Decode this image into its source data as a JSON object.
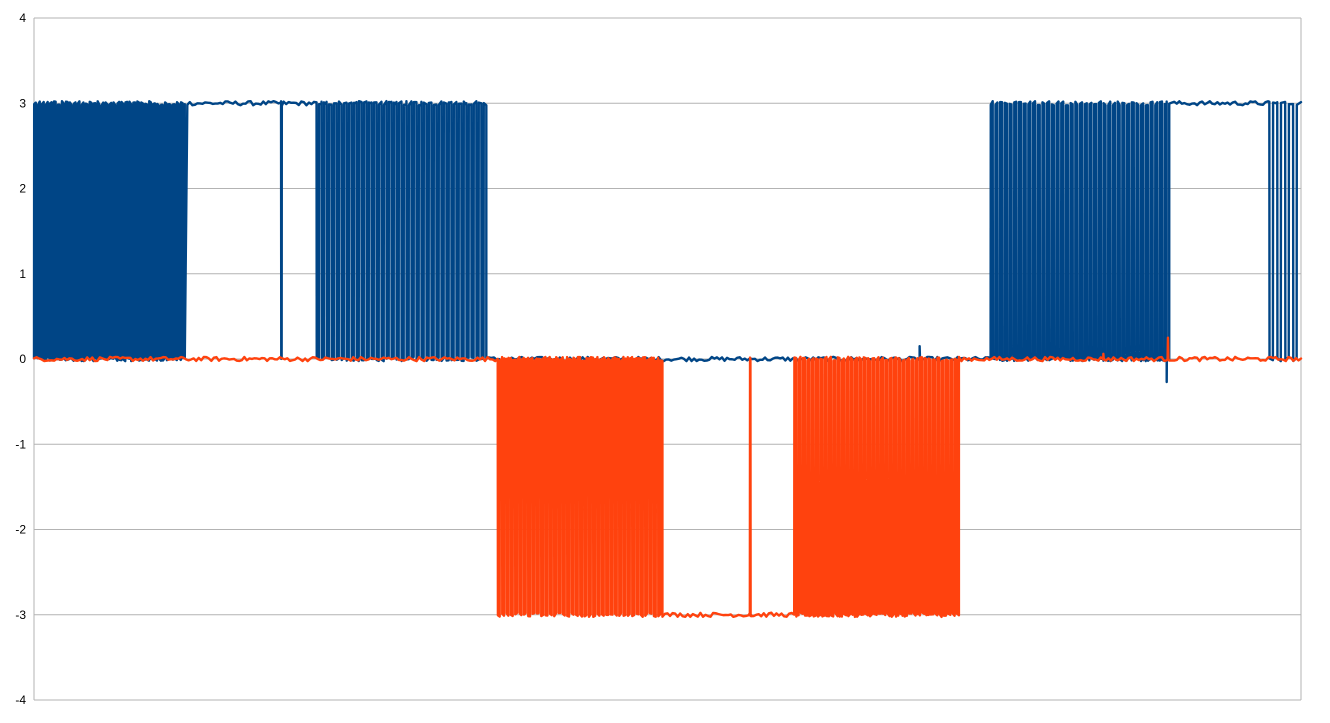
{
  "chart_data": {
    "type": "line",
    "title": "",
    "xlabel": "",
    "ylabel": "",
    "ylim": [
      -4,
      4
    ],
    "yticks": [
      "4",
      "3",
      "2",
      "1",
      "0",
      "-1",
      "-2",
      "-3",
      "-4"
    ],
    "grid": true,
    "legend": "none",
    "x": {
      "start": 0,
      "end": 1000
    },
    "series": [
      {
        "color": "#004586",
        "high": 3.0,
        "low": 0.0,
        "pulse_trains": [
          {
            "x_start": 0,
            "x_end": 119,
            "count": 38,
            "state_outside": "low"
          },
          {
            "x_start": 195,
            "x_end": 196,
            "count": 1,
            "state_outside": "high",
            "pulse_to": "low"
          },
          {
            "x_start": 223,
            "x_end": 357,
            "count": 34,
            "state_outside": "high_then_low"
          },
          {
            "x_start": 755,
            "x_end": 896,
            "count": 38,
            "state_outside": "low_then_high"
          },
          {
            "x_start": 975,
            "x_end": 1000,
            "count": 4,
            "state_outside": "high",
            "pulse_to": "low"
          }
        ],
        "segments": [
          {
            "x_start": 119,
            "x_end": 223,
            "level": 3.0
          },
          {
            "x_start": 357,
            "x_end": 755,
            "level": 0.0
          },
          {
            "x_start": 896,
            "x_end": 975,
            "level": 3.0
          }
        ],
        "spikes": [
          {
            "x": 699,
            "y": 0.15
          },
          {
            "x": 894,
            "y": -0.27
          }
        ]
      },
      {
        "color": "#ff420e",
        "high": 0.0,
        "low": -3.0,
        "pulse_trains": [
          {
            "x_start": 366,
            "x_end": 496,
            "count": 38,
            "state_outside": "high_then_low"
          },
          {
            "x_start": 565,
            "x_end": 566,
            "count": 1,
            "state_outside": "low",
            "pulse_to": "high"
          },
          {
            "x_start": 600,
            "x_end": 730,
            "count": 38,
            "state_outside": "low_then_high"
          }
        ],
        "segments": [
          {
            "x_start": 0,
            "x_end": 366,
            "level": 0.0
          },
          {
            "x_start": 496,
            "x_end": 600,
            "level": -3.0
          },
          {
            "x_start": 730,
            "x_end": 1000,
            "level": 0.0
          }
        ],
        "spikes": [
          {
            "x": 844,
            "y": 0.06
          },
          {
            "x": 895,
            "y": 0.25
          }
        ]
      }
    ]
  }
}
